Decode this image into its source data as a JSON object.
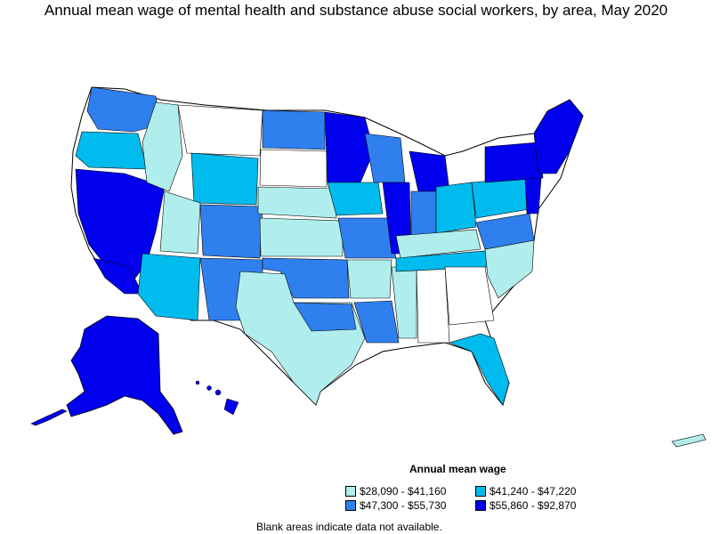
{
  "title": "Annual mean wage of mental health and substance abuse social workers, by area, May 2020",
  "legend": {
    "title": "Annual mean wage",
    "items": [
      {
        "label": "$28,090 - $41,160",
        "color": "#b0eeee"
      },
      {
        "label": "$41,240 - $47,220",
        "color": "#00bbee"
      },
      {
        "label": "$47,300 - $55,730",
        "color": "#2f80ee"
      },
      {
        "label": "$55,860 - $92,870",
        "color": "#0000ee"
      }
    ]
  },
  "note": "Blank areas indicate data not available."
}
